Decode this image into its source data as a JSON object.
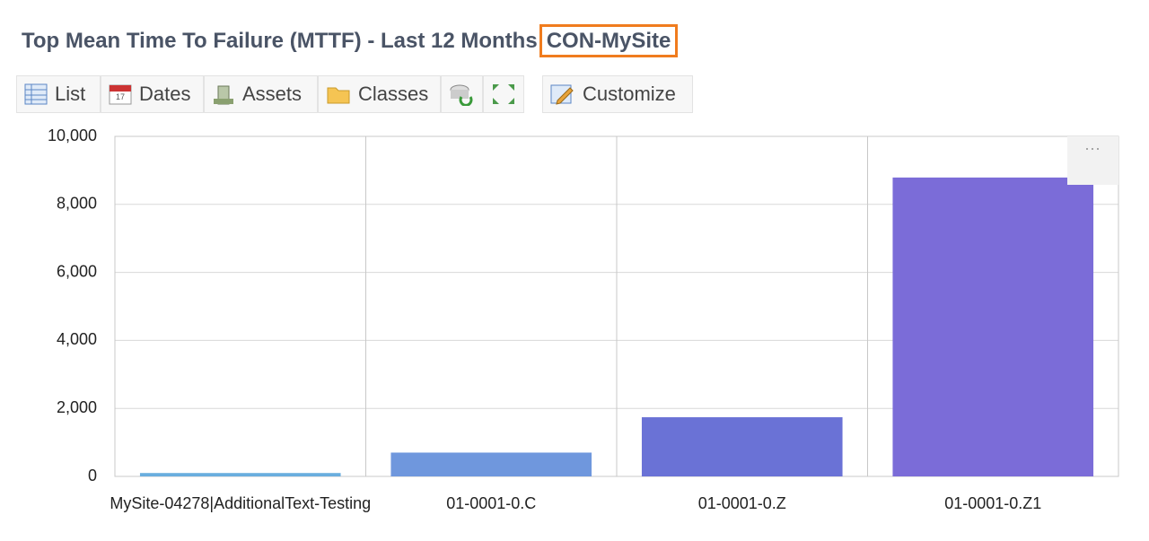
{
  "header": {
    "title": "Top Mean Time To Failure (MTTF) - Last 12 Months",
    "site": "CON-MySite"
  },
  "toolbar": [
    "List",
    "Dates",
    "Assets",
    "Classes",
    "Customize"
  ],
  "chart_data": {
    "type": "bar",
    "categories": [
      "MySite-04278|AdditionalText-Testing",
      "01-0001-0.C",
      "01-0001-0.Z",
      "01-0001-0.Z1"
    ],
    "values": [
      100,
      700,
      1740,
      8790
    ],
    "colors": [
      "#6aaede",
      "#6f97dd",
      "#6a72d6",
      "#7b6cd8"
    ],
    "ylim": [
      0,
      10000
    ],
    "yticks": [
      0,
      {
        "value": 2000,
        "label": "2,000"
      },
      {
        "value": 4000,
        "label": "4,000"
      },
      {
        "value": 6000,
        "label": "6,000"
      },
      {
        "value": 8000,
        "label": "8,000"
      },
      {
        "value": 10000,
        "label": "10,000"
      }
    ],
    "grid": true
  }
}
